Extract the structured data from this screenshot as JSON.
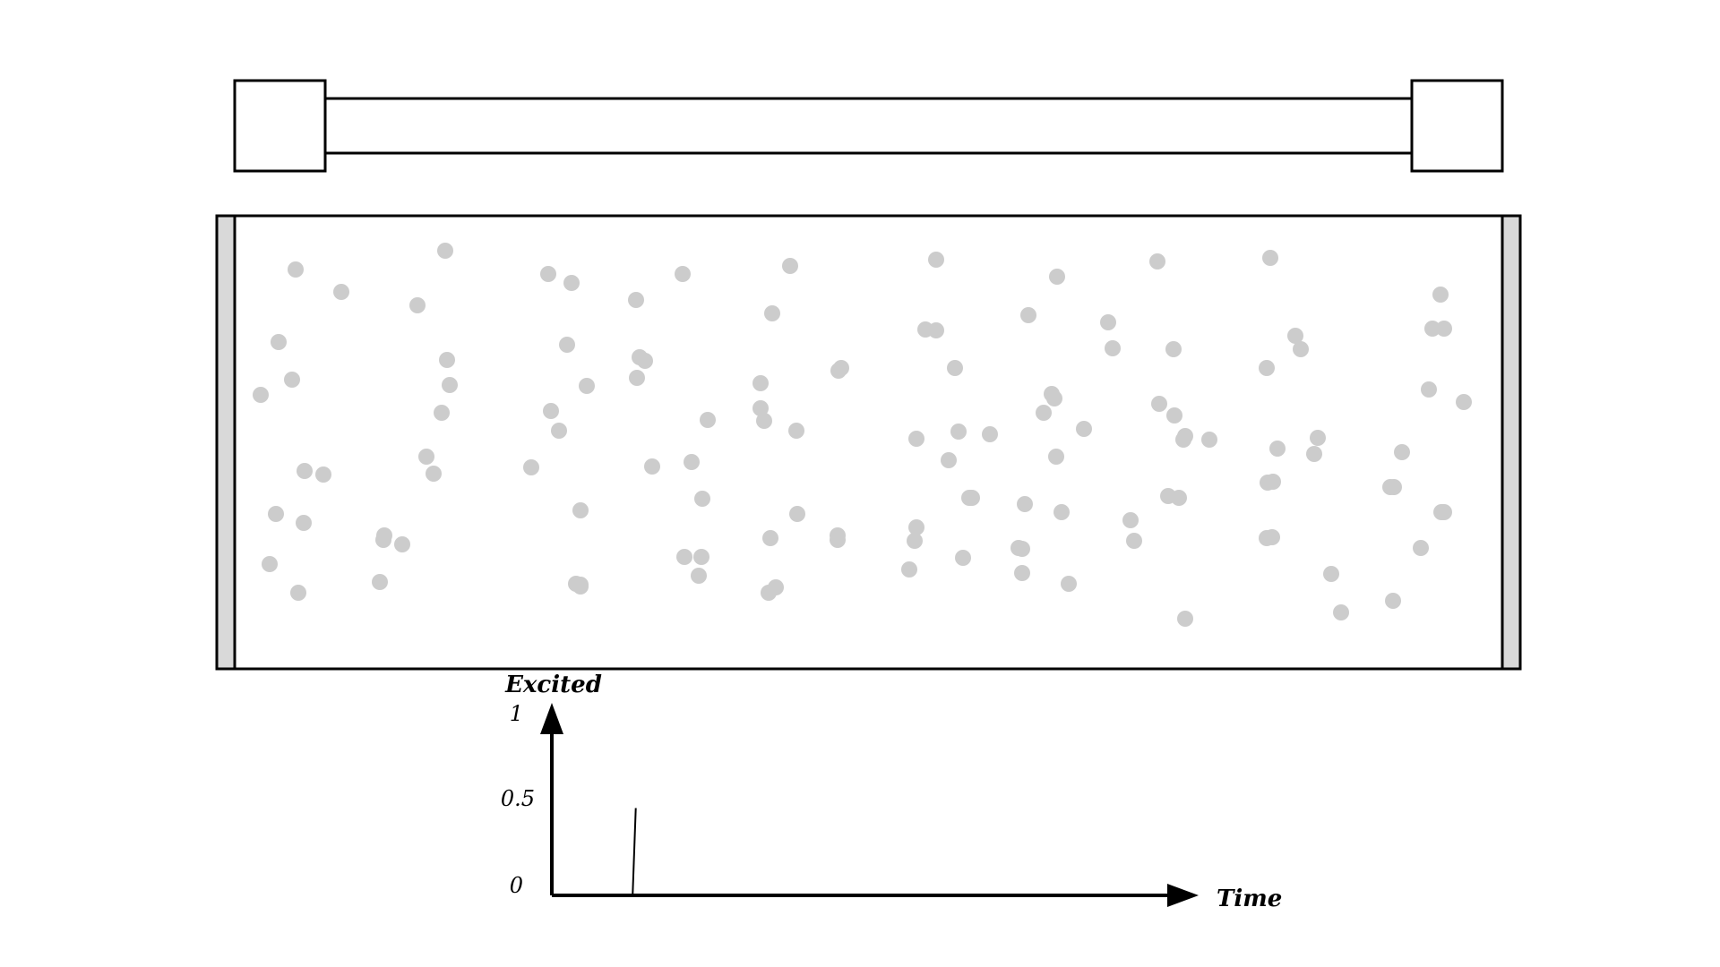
{
  "colors": {
    "stroke": "#000000",
    "particle": "#cccccc",
    "wall": "#d9d9d9",
    "background": "#ffffff"
  },
  "graph": {
    "y_label": "Excited",
    "x_label": "Time",
    "ticks": [
      "0",
      "0.5",
      "1"
    ],
    "ylim": [
      0,
      1
    ]
  },
  "chart_data": {
    "type": "line",
    "xlabel": "Time",
    "ylabel": "Excited",
    "ylim": [
      0,
      1
    ],
    "y_ticks": [
      0,
      0.5,
      1
    ],
    "series": [
      {
        "points": [
          [
            0.13,
            0.0
          ],
          [
            0.135,
            0.5
          ]
        ]
      }
    ]
  },
  "particle_count": 125
}
